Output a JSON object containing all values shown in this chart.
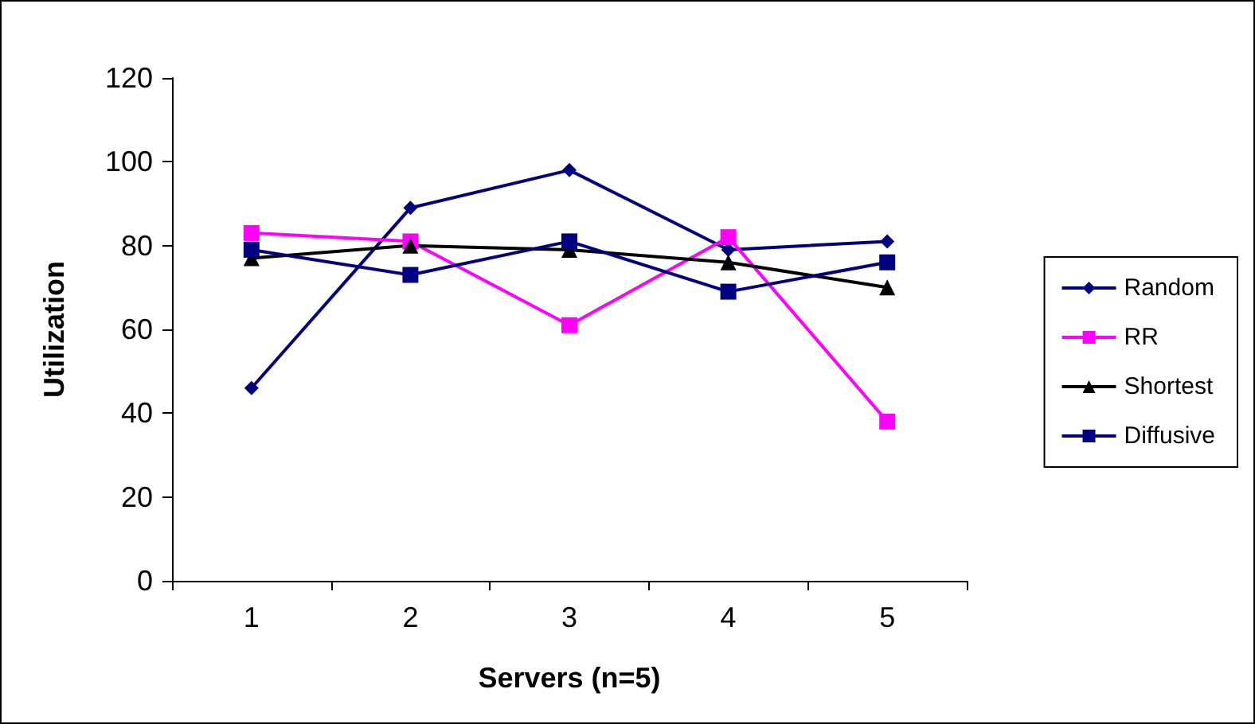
{
  "chart_data": {
    "type": "line",
    "xlabel": "Servers (n=5)",
    "ylabel": "Utilization",
    "categories": [
      "1",
      "2",
      "3",
      "4",
      "5"
    ],
    "ylim": [
      0,
      120
    ],
    "yticks": [
      0,
      20,
      40,
      60,
      80,
      100,
      120
    ],
    "grid": false,
    "legend": "right",
    "line_style": "solid",
    "series": [
      {
        "name": "Random",
        "color": "#000080",
        "marker": "diamond",
        "values": [
          46,
          89,
          98,
          79,
          81
        ]
      },
      {
        "name": "RR",
        "color": "#ff00ff",
        "marker": "square",
        "values": [
          83,
          81,
          61,
          82,
          38
        ]
      },
      {
        "name": "Shortest",
        "color": "#000000",
        "marker": "triangle",
        "values": [
          77,
          80,
          79,
          76,
          70
        ]
      },
      {
        "name": "Diffusive",
        "color": "#000080",
        "marker": "square",
        "values": [
          79,
          73,
          81,
          69,
          76
        ]
      }
    ]
  }
}
